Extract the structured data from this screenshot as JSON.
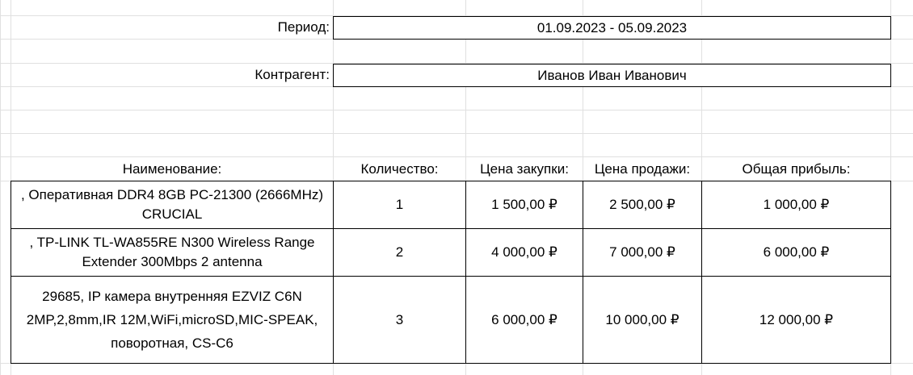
{
  "period": {
    "label": "Период:",
    "value": "01.09.2023 - 05.09.2023"
  },
  "counterparty": {
    "label": "Контрагент:",
    "value": "Иванов Иван Иванович"
  },
  "table": {
    "headers": [
      "Наименование:",
      "Количество:",
      "Цена закупки:",
      "Цена продажи:",
      "Общая прибыль:"
    ],
    "rows": [
      {
        "name": ", Оперативная DDR4 8GB PC-21300 (2666MHz) CRUCIAL",
        "qty": "1",
        "buy": "1 500,00 ₽",
        "sell": "2 500,00 ₽",
        "profit": "1 000,00 ₽"
      },
      {
        "name": ", TP-LINK TL-WA855RE N300 Wireless Range Extender 300Mbps 2 antenna",
        "qty": "2",
        "buy": "4 000,00 ₽",
        "sell": "7 000,00 ₽",
        "profit": "6 000,00 ₽"
      },
      {
        "name": "29685, IP камера внутренняя EZVIZ C6N 2MP,2,8mm,IR 12M,WiFi,microSD,MIC-SPEAK, поворотная, CS-C6",
        "qty": "3",
        "buy": "6 000,00 ₽",
        "sell": "10 000,00 ₽",
        "profit": "12 000,00 ₽"
      }
    ]
  }
}
